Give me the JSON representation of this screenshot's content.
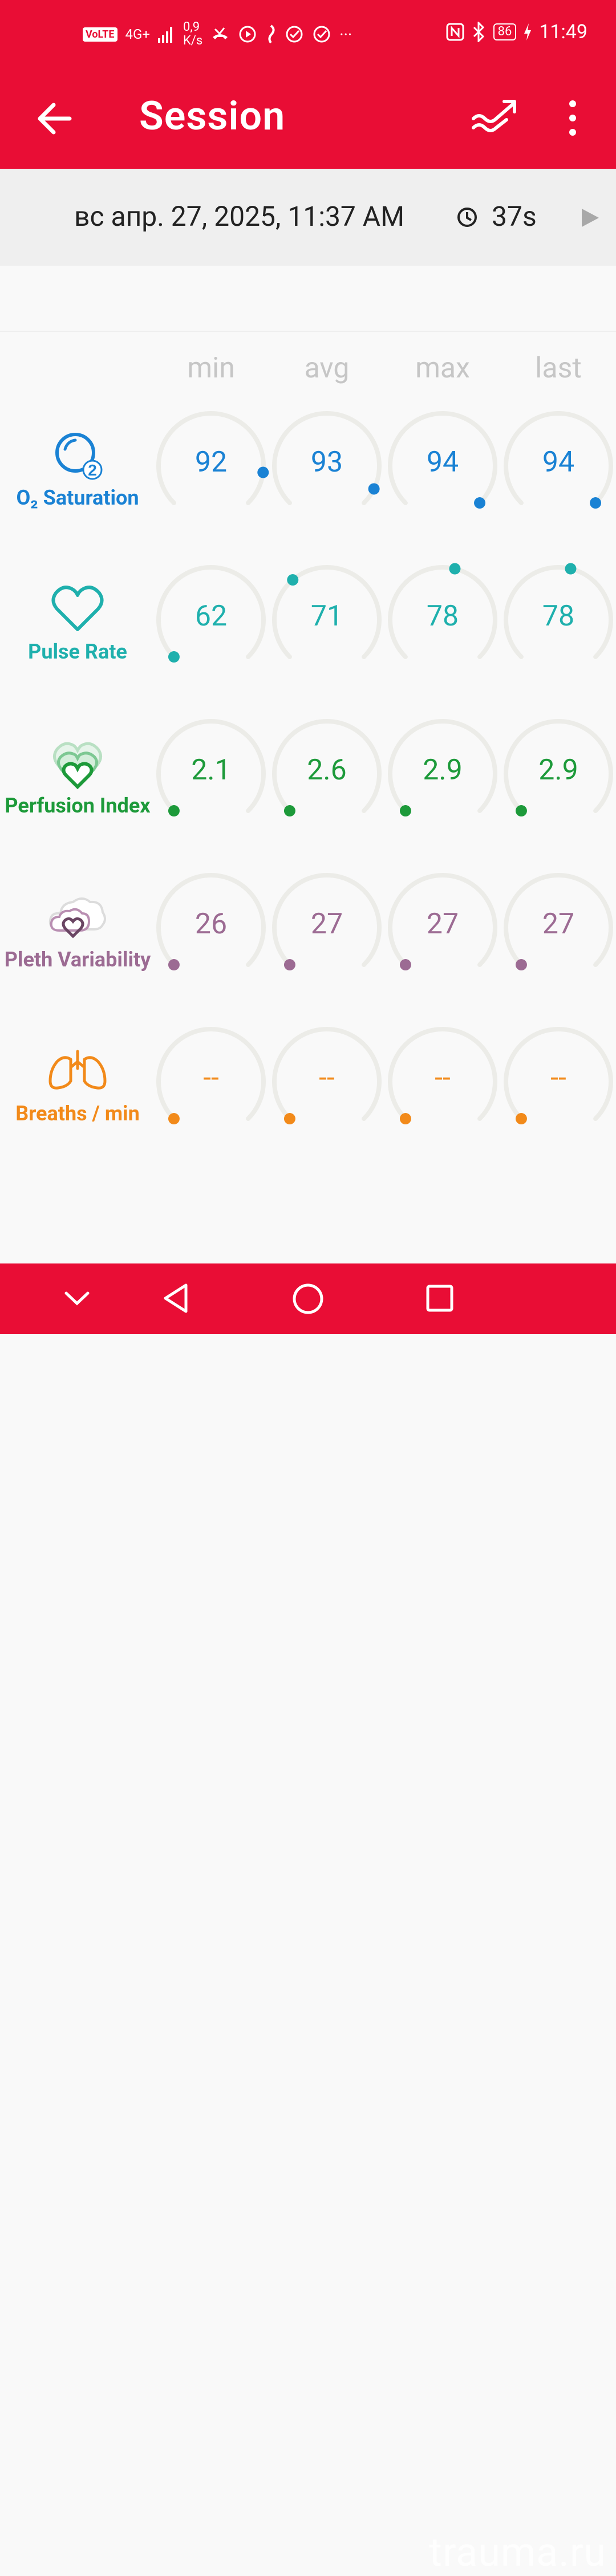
{
  "status_bar": {
    "volte": "VoLTE",
    "network": "4G+",
    "speed_value": "0,9",
    "speed_unit": "K/s",
    "more": "···",
    "battery": "86",
    "time": "11:49"
  },
  "app_bar": {
    "title": "Session"
  },
  "session": {
    "date": "вс апр. 27, 2025, 11:37 AM",
    "duration": "37s"
  },
  "columns": [
    "min",
    "avg",
    "max",
    "last"
  ],
  "metrics": [
    {
      "label": "O₂ Saturation",
      "icon": "o2-saturation-icon",
      "color": "#1a82d4",
      "values": [
        "92",
        "93",
        "94",
        "94"
      ],
      "levels": [
        0.86,
        0.93,
        1.0,
        1.0
      ]
    },
    {
      "label": "Pulse Rate",
      "icon": "heart-icon",
      "color": "#1fb0ad",
      "values": [
        "62",
        "71",
        "78",
        "78"
      ],
      "levels": [
        0.0,
        0.35,
        0.55,
        0.55
      ]
    },
    {
      "label": "Perfusion Index",
      "icon": "layered-hearts-icon",
      "color": "#1d9a3a",
      "values": [
        "2.1",
        "2.6",
        "2.9",
        "2.9"
      ],
      "levels": [
        0.0,
        0.0,
        0.0,
        0.0
      ]
    },
    {
      "label": "Pleth Variability",
      "icon": "cloud-heart-icon",
      "color": "#9c6b93",
      "values": [
        "26",
        "27",
        "27",
        "27"
      ],
      "levels": [
        0.0,
        0.0,
        0.0,
        0.0
      ]
    },
    {
      "label": "Breaths / min",
      "icon": "lungs-icon",
      "color": "#f28a1a",
      "values": [
        "--",
        "--",
        "--",
        "--"
      ],
      "levels": [
        0.0,
        0.0,
        0.0,
        0.0
      ]
    }
  ],
  "watermark": "trauma.ru"
}
